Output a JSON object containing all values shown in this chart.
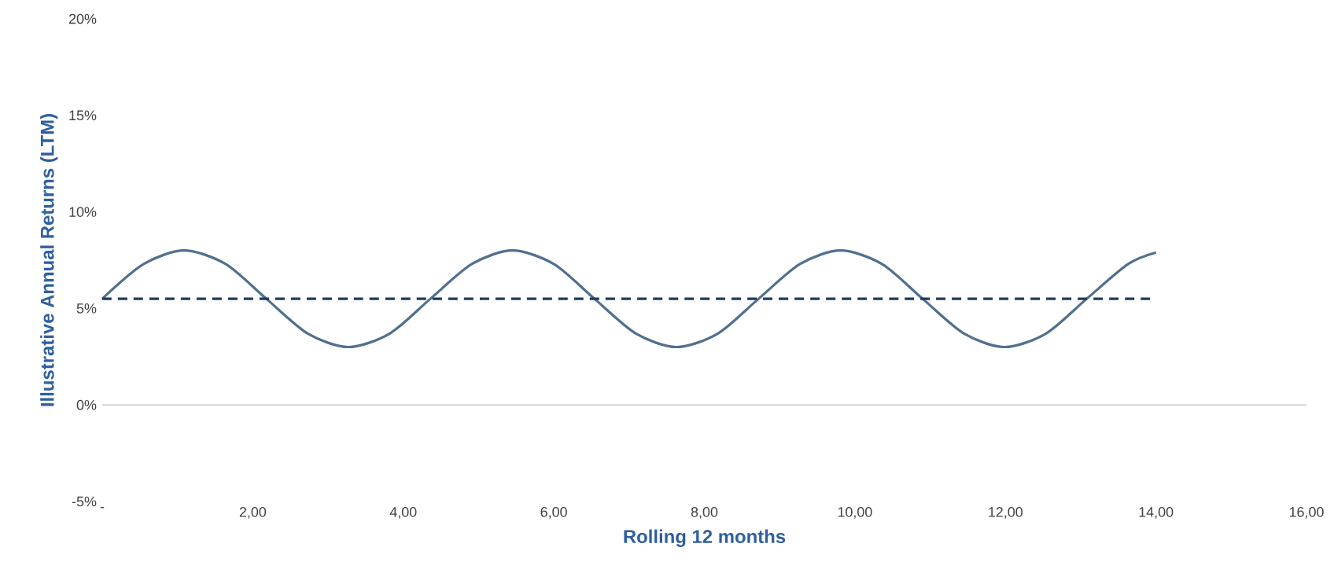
{
  "chart_data": {
    "type": "line",
    "xlabel": "Rolling 12 months",
    "ylabel": "Illustrative Annual Returns (LTM)",
    "series": [
      {
        "color": "#50708f",
        "line_style": "solid",
        "x": [
          0,
          0.55,
          1.09,
          1.64,
          2.18,
          2.73,
          3.27,
          3.82,
          4.36,
          4.91,
          5.45,
          6.0,
          6.54,
          7.09,
          7.63,
          8.18,
          8.72,
          9.27,
          9.81,
          10.36,
          10.9,
          11.45,
          11.99,
          12.54,
          13.08,
          13.63,
          14
        ],
        "values": [
          5.5,
          7.3,
          8,
          7.3,
          5.5,
          3.7,
          3,
          3.7,
          5.5,
          7.3,
          8,
          7.3,
          5.5,
          3.7,
          3,
          3.7,
          5.5,
          7.3,
          8,
          7.3,
          5.5,
          3.7,
          3,
          3.7,
          5.5,
          7.3,
          7.9
        ]
      },
      {
        "color": "#1f3a5f",
        "line_style": "dashed",
        "x": [
          0,
          14
        ],
        "values": [
          5.5,
          5.5
        ]
      }
    ],
    "xlim": [
      0,
      16
    ],
    "xticks": [
      {
        "value": 0,
        "label": "-"
      },
      {
        "value": 2,
        "label": "2,00"
      },
      {
        "value": 4,
        "label": "4,00"
      },
      {
        "value": 6,
        "label": "6,00"
      },
      {
        "value": 8,
        "label": "8,00"
      },
      {
        "value": 10,
        "label": "10,00"
      },
      {
        "value": 12,
        "label": "12,00"
      },
      {
        "value": 14,
        "label": "14,00"
      },
      {
        "value": 16,
        "label": "16,00"
      }
    ],
    "ylim": [
      -5,
      20
    ],
    "yticks": [
      {
        "value": -5,
        "label": "-5%"
      },
      {
        "value": 0,
        "label": "0%"
      },
      {
        "value": 5,
        "label": "5%"
      },
      {
        "value": 10,
        "label": "10%"
      },
      {
        "value": 15,
        "label": "15%"
      },
      {
        "value": 20,
        "label": "20%"
      }
    ],
    "ref_lines": [
      {
        "axis": "y",
        "value": 0,
        "color": "#bfbfbf"
      }
    ],
    "grid": false,
    "marker": "none"
  }
}
